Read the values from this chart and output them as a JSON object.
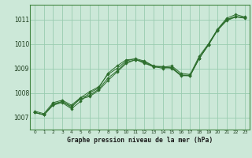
{
  "background_color": "#cce8d8",
  "grid_color": "#99ccb0",
  "line_color": "#2d6e2d",
  "marker_color": "#2d6e2d",
  "title": "Graphe pression niveau de la mer (hPa)",
  "ylim": [
    1006.5,
    1011.6
  ],
  "xlim": [
    -0.5,
    23.5
  ],
  "yticks": [
    1007,
    1008,
    1009,
    1010,
    1011
  ],
  "xticks": [
    0,
    1,
    2,
    3,
    4,
    5,
    6,
    7,
    8,
    9,
    10,
    11,
    12,
    13,
    14,
    15,
    16,
    17,
    18,
    19,
    20,
    21,
    22,
    23
  ],
  "series": [
    [
      1007.2,
      1007.1,
      1007.5,
      1007.65,
      1007.4,
      1007.8,
      1008.05,
      1008.25,
      1008.75,
      1009.0,
      1009.3,
      1009.4,
      1009.3,
      1009.1,
      1009.05,
      1009.1,
      1008.8,
      1008.75,
      1009.5,
      1010.0,
      1010.6,
      1011.05,
      1011.2,
      1011.1
    ],
    [
      1007.2,
      1007.1,
      1007.55,
      1007.65,
      1007.45,
      1007.75,
      1007.85,
      1008.1,
      1008.5,
      1008.85,
      1009.2,
      1009.35,
      1009.25,
      1009.05,
      1009.05,
      1009.0,
      1008.7,
      1008.7,
      1009.4,
      1009.95,
      1010.55,
      1010.95,
      1011.1,
      1011.05
    ],
    [
      1007.2,
      1007.1,
      1007.5,
      1007.6,
      1007.35,
      1007.65,
      1008.0,
      1008.2,
      1008.8,
      1009.1,
      1009.35,
      1009.38,
      1009.2,
      1009.08,
      1009.0,
      1009.05,
      1008.72,
      1008.7,
      1009.42,
      1009.95,
      1010.58,
      1011.0,
      1011.12,
      1011.07
    ],
    [
      1007.25,
      1007.15,
      1007.6,
      1007.7,
      1007.5,
      1007.8,
      1007.9,
      1008.15,
      1008.6,
      1008.9,
      1009.25,
      1009.35,
      1009.28,
      1009.08,
      1009.08,
      1009.03,
      1008.73,
      1008.72,
      1009.42,
      1009.98,
      1010.58,
      1010.98,
      1011.12,
      1011.07
    ]
  ]
}
